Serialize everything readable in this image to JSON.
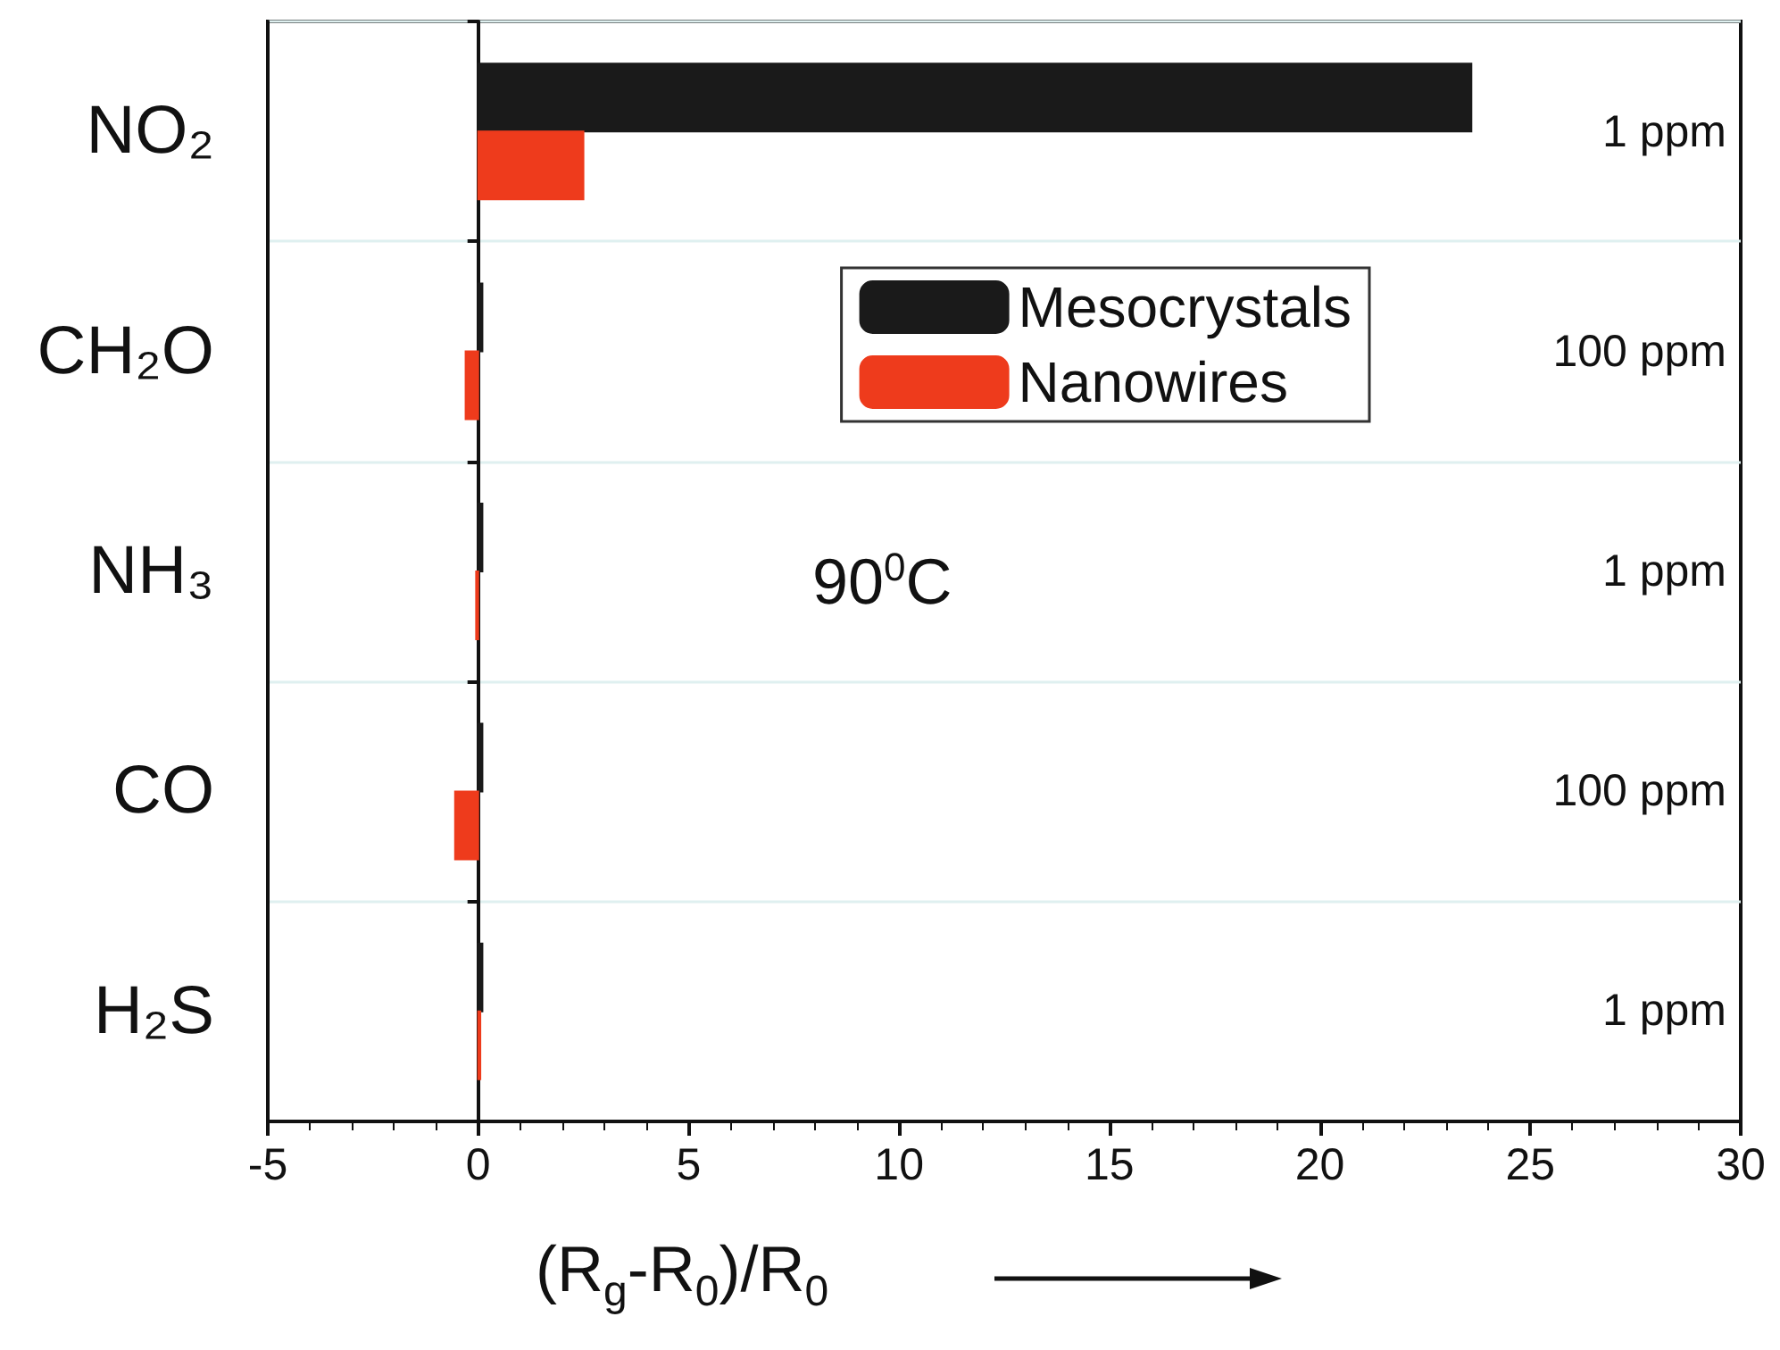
{
  "chart_data": {
    "type": "bar",
    "orientation": "horizontal",
    "xlabel": "(R$_{g}$-R$_{0}$)/R$_{0}$",
    "categories": [
      "NO₂",
      "CH₂O",
      "NH₃",
      "CO",
      "H₂S"
    ],
    "series": [
      {
        "name": "Mesocrystals",
        "color": "#1a1a1a",
        "values": [
          23.6,
          0.1,
          0.1,
          0.1,
          0.1
        ]
      },
      {
        "name": "Nanowires",
        "color": "#ee3b1c",
        "values": [
          2.5,
          -0.3,
          -0.05,
          -0.55,
          0.05
        ]
      }
    ],
    "xlim": [
      -5,
      30
    ],
    "xticks": [
      -5,
      0,
      5,
      10,
      15,
      20,
      25,
      30
    ],
    "grid": "y",
    "legend": "top right",
    "annotations": [
      "1 ppm",
      "100 ppm",
      "1 ppm",
      "100 ppm",
      "1 ppm",
      "90$^{0}$C"
    ]
  }
}
